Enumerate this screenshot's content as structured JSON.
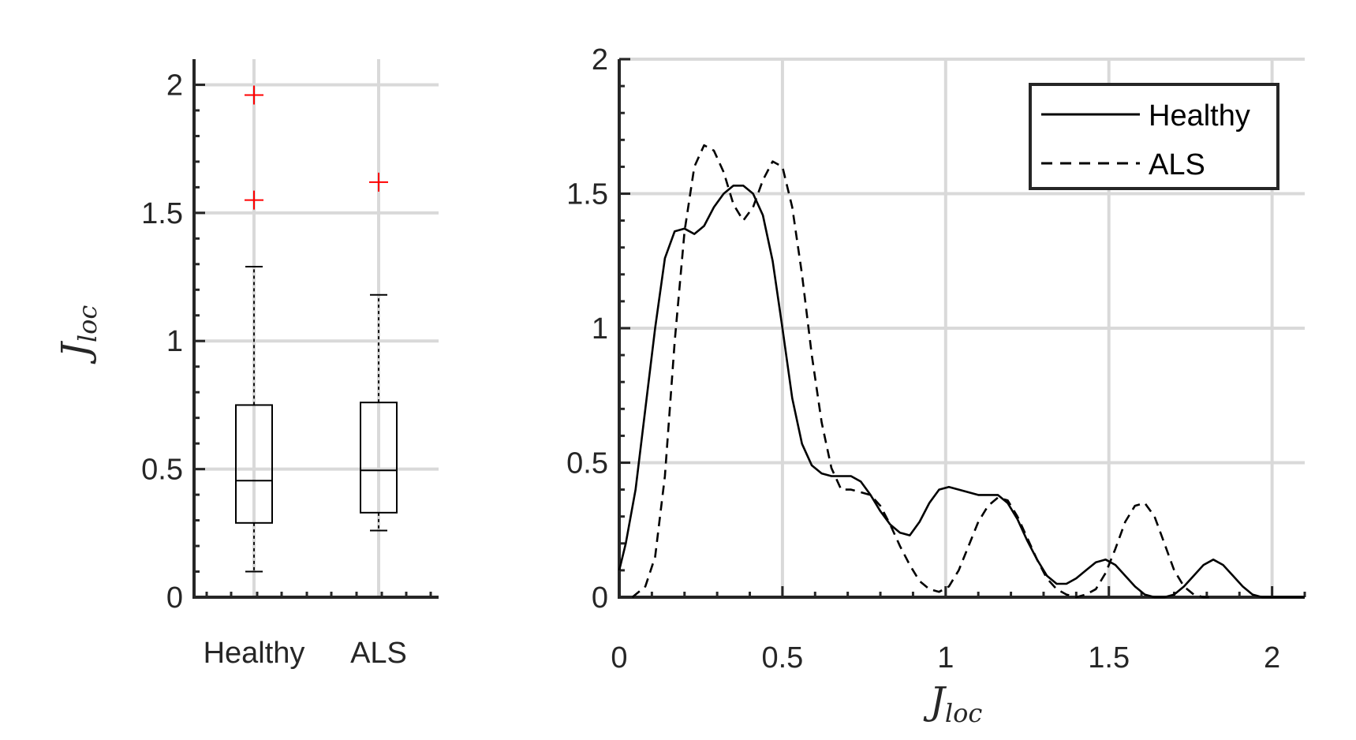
{
  "chart_data": [
    {
      "type": "box",
      "categories": [
        "Healthy",
        "ALS"
      ],
      "ylabel": {
        "main": "J",
        "sub": "loc"
      },
      "ylim": [
        0,
        2.1
      ],
      "yticks": [
        0,
        0.5,
        1,
        1.5,
        2
      ],
      "ytick_labels": [
        "0",
        "0.5",
        "1",
        "1.5",
        "2"
      ],
      "grid": true,
      "boxes": [
        {
          "name": "Healthy",
          "whisker_low": 0.1,
          "q1": 0.29,
          "median": 0.455,
          "q3": 0.75,
          "whisker_high": 1.29,
          "outliers": [
            1.55,
            1.96
          ]
        },
        {
          "name": "ALS",
          "whisker_low": 0.26,
          "q1": 0.33,
          "median": 0.495,
          "q3": 0.76,
          "whisker_high": 1.18,
          "outliers": [
            1.62
          ]
        }
      ],
      "colors": {
        "box": "#000000",
        "outlier": "#ff0000",
        "grid": "#d9d9d9",
        "axis": "#262626"
      }
    },
    {
      "type": "line",
      "xlabel": {
        "main": "J",
        "sub": "loc"
      },
      "xlim": [
        0,
        2.1
      ],
      "ylim": [
        0,
        2
      ],
      "xticks": [
        0,
        0.5,
        1,
        1.5,
        2
      ],
      "xtick_labels": [
        "0",
        "0.5",
        "1",
        "1.5",
        "2"
      ],
      "yticks": [
        0,
        0.5,
        1,
        1.5,
        2
      ],
      "ytick_labels": [
        "0",
        "0.5",
        "1",
        "1.5",
        "2"
      ],
      "grid": true,
      "legend": {
        "placement": "top-right",
        "entries": [
          "Healthy",
          "ALS"
        ]
      },
      "series": [
        {
          "name": "Healthy",
          "style": "solid",
          "x": [
            0,
            0.02,
            0.05,
            0.08,
            0.11,
            0.14,
            0.17,
            0.2,
            0.23,
            0.26,
            0.29,
            0.32,
            0.35,
            0.38,
            0.41,
            0.44,
            0.47,
            0.5,
            0.53,
            0.56,
            0.59,
            0.62,
            0.65,
            0.68,
            0.71,
            0.74,
            0.77,
            0.8,
            0.83,
            0.86,
            0.89,
            0.92,
            0.95,
            0.98,
            1.01,
            1.04,
            1.07,
            1.1,
            1.13,
            1.16,
            1.19,
            1.22,
            1.25,
            1.28,
            1.31,
            1.34,
            1.37,
            1.4,
            1.43,
            1.46,
            1.49,
            1.52,
            1.55,
            1.58,
            1.61,
            1.64,
            1.67,
            1.7,
            1.73,
            1.76,
            1.79,
            1.82,
            1.85,
            1.88,
            1.91,
            1.94,
            1.97,
            2.0,
            2.03,
            2.06,
            2.1
          ],
          "y": [
            0.1,
            0.2,
            0.4,
            0.7,
            1.0,
            1.26,
            1.36,
            1.37,
            1.35,
            1.38,
            1.45,
            1.5,
            1.53,
            1.53,
            1.5,
            1.42,
            1.25,
            1.0,
            0.74,
            0.57,
            0.49,
            0.46,
            0.45,
            0.45,
            0.45,
            0.43,
            0.38,
            0.32,
            0.27,
            0.24,
            0.23,
            0.28,
            0.35,
            0.4,
            0.41,
            0.4,
            0.39,
            0.38,
            0.38,
            0.38,
            0.35,
            0.29,
            0.21,
            0.14,
            0.08,
            0.05,
            0.05,
            0.07,
            0.1,
            0.13,
            0.14,
            0.12,
            0.08,
            0.04,
            0.01,
            0.0,
            0.0,
            0.01,
            0.04,
            0.08,
            0.12,
            0.14,
            0.12,
            0.08,
            0.04,
            0.01,
            0.0,
            0.0,
            0.0,
            0.0,
            0.0
          ]
        },
        {
          "name": "ALS",
          "style": "dashed",
          "x": [
            0.04,
            0.08,
            0.11,
            0.14,
            0.17,
            0.2,
            0.23,
            0.26,
            0.29,
            0.32,
            0.35,
            0.38,
            0.41,
            0.44,
            0.47,
            0.5,
            0.53,
            0.56,
            0.59,
            0.62,
            0.65,
            0.68,
            0.71,
            0.74,
            0.77,
            0.8,
            0.83,
            0.86,
            0.89,
            0.92,
            0.95,
            0.98,
            1.01,
            1.04,
            1.07,
            1.1,
            1.13,
            1.16,
            1.19,
            1.22,
            1.25,
            1.28,
            1.31,
            1.34,
            1.37,
            1.4,
            1.43,
            1.46,
            1.49,
            1.52,
            1.55,
            1.58,
            1.61,
            1.64,
            1.67,
            1.7,
            1.73,
            1.76,
            1.79,
            1.82
          ],
          "y": [
            0.0,
            0.04,
            0.15,
            0.45,
            0.95,
            1.36,
            1.6,
            1.68,
            1.66,
            1.58,
            1.46,
            1.4,
            1.45,
            1.55,
            1.62,
            1.6,
            1.45,
            1.2,
            0.9,
            0.65,
            0.48,
            0.4,
            0.4,
            0.39,
            0.38,
            0.34,
            0.27,
            0.19,
            0.12,
            0.06,
            0.03,
            0.02,
            0.04,
            0.1,
            0.19,
            0.28,
            0.34,
            0.37,
            0.36,
            0.3,
            0.22,
            0.14,
            0.07,
            0.03,
            0.01,
            0.0,
            0.01,
            0.03,
            0.09,
            0.18,
            0.28,
            0.34,
            0.35,
            0.3,
            0.2,
            0.1,
            0.04,
            0.01,
            0.0,
            0.0
          ]
        }
      ],
      "colors": {
        "line": "#000000",
        "grid": "#d9d9d9",
        "axis": "#262626",
        "legend_border": "#262626"
      }
    }
  ]
}
